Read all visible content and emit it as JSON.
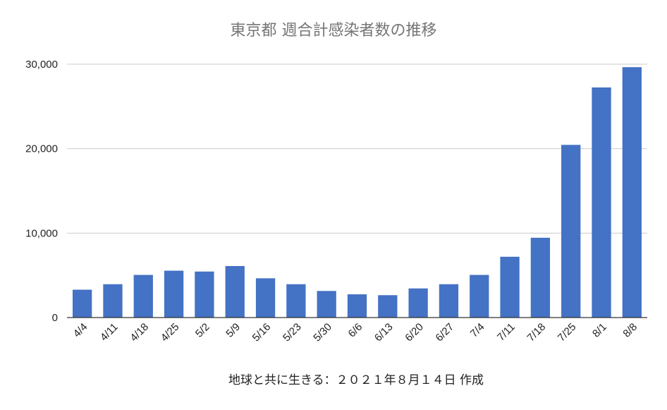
{
  "chart_data": {
    "type": "bar",
    "title": "東京都 週合計感染者数の推移",
    "xlabel": "",
    "ylabel": "",
    "categories": [
      "4/4",
      "4/11",
      "4/18",
      "4/25",
      "5/2",
      "5/9",
      "5/16",
      "5/23",
      "5/30",
      "6/6",
      "6/13",
      "6/20",
      "6/27",
      "7/4",
      "7/11",
      "7/18",
      "7/25",
      "8/1",
      "8/8"
    ],
    "values": [
      3300,
      3950,
      5050,
      5550,
      5450,
      6100,
      4650,
      3950,
      3150,
      2750,
      2650,
      3450,
      3950,
      5050,
      7200,
      9450,
      20450,
      27250,
      29650
    ],
    "yticks": [
      0,
      10000,
      20000,
      30000
    ],
    "ytick_labels": [
      "0",
      "10,000",
      "20,000",
      "30,000"
    ],
    "ylim": [
      0,
      30000
    ],
    "grid": true,
    "legend": "none",
    "colors": {
      "bar": "#4472c4",
      "grid": "#cccccc",
      "title": "#757575"
    }
  },
  "annotation": "地球と共に生きる：２０２１年８月１４日 作成"
}
